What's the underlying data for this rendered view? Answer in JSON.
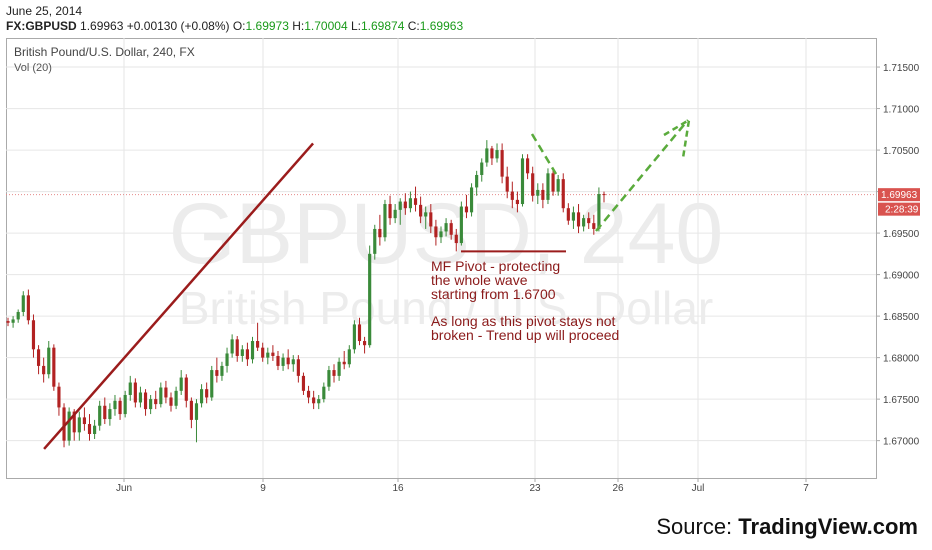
{
  "header": {
    "date": "June 25, 2014",
    "symbol": "FX:GBPUSD",
    "last": "1.69963",
    "change": "+0.00130 (+0.08%)",
    "o_label": "O:",
    "o": "1.69973",
    "h_label": "H:",
    "h": "1.70004",
    "l_label": "L:",
    "l": "1.69874",
    "c_label": "C:",
    "c": "1.69963"
  },
  "chart_title": "British Pound/U.S. Dollar, 240, FX",
  "vol_label": "Vol (20)",
  "watermark": {
    "line1": "GBPUSD, 240",
    "line2": "British Pound / U.S. Dollar"
  },
  "price_tag": "1.69963",
  "time_tag": "2:28:39",
  "annotation": {
    "line1": "MF Pivot - protecting",
    "line2": "the whole wave",
    "line3": "starting from 1.6700",
    "line4": "As long as this pivot stays not",
    "line5": "broken - Trend up will proceed"
  },
  "source": {
    "prefix": "Source: ",
    "brand": "TradingView.com"
  },
  "colors": {
    "up": "#3a8a3a",
    "down": "#b22222",
    "trend": "#9b1c1c",
    "arrow": "#5aab3c",
    "grid": "#e6e6e6"
  },
  "chart_data": {
    "type": "candlestick",
    "title": "British Pound/U.S. Dollar, 240, FX",
    "xticks": [
      "Jun",
      "9",
      "16",
      "23",
      "26",
      "Jul",
      "7"
    ],
    "yticks": [
      "1.71500",
      "1.71000",
      "1.70500",
      "1.70000",
      "1.69500",
      "1.69000",
      "1.68500",
      "1.68000",
      "1.67500",
      "1.67000"
    ],
    "ylim": [
      1.6655,
      1.7185
    ],
    "last_price": 1.69963,
    "candles": [
      [
        1.6844,
        1.6848,
        1.6838,
        1.6842
      ],
      [
        1.6842,
        1.685,
        1.6836,
        1.6846
      ],
      [
        1.6846,
        1.6858,
        1.6842,
        1.6855
      ],
      [
        1.6855,
        1.688,
        1.685,
        1.6875
      ],
      [
        1.6875,
        1.6882,
        1.684,
        1.6845
      ],
      [
        1.6845,
        1.6852,
        1.68,
        1.681
      ],
      [
        1.681,
        1.6815,
        1.678,
        1.679
      ],
      [
        1.679,
        1.68,
        1.677,
        1.678
      ],
      [
        1.678,
        1.682,
        1.6775,
        1.6812
      ],
      [
        1.6812,
        1.6816,
        1.676,
        1.6765
      ],
      [
        1.6765,
        1.677,
        1.673,
        1.674
      ],
      [
        1.674,
        1.6745,
        1.6692,
        1.67
      ],
      [
        1.67,
        1.674,
        1.6694,
        1.6735
      ],
      [
        1.6735,
        1.6738,
        1.67,
        1.671
      ],
      [
        1.671,
        1.6735,
        1.67,
        1.6728
      ],
      [
        1.6728,
        1.674,
        1.6712,
        1.672
      ],
      [
        1.672,
        1.6732,
        1.67,
        1.6708
      ],
      [
        1.6708,
        1.6725,
        1.6702,
        1.6718
      ],
      [
        1.6718,
        1.6748,
        1.6712,
        1.6742
      ],
      [
        1.6742,
        1.6752,
        1.672,
        1.6726
      ],
      [
        1.6726,
        1.6745,
        1.6718,
        1.6738
      ],
      [
        1.6738,
        1.6755,
        1.673,
        1.6748
      ],
      [
        1.6748,
        1.6752,
        1.6725,
        1.6732
      ],
      [
        1.6732,
        1.676,
        1.6728,
        1.6755
      ],
      [
        1.6755,
        1.6778,
        1.6748,
        1.677
      ],
      [
        1.677,
        1.6775,
        1.674,
        1.6746
      ],
      [
        1.6746,
        1.6765,
        1.674,
        1.6758
      ],
      [
        1.6758,
        1.6762,
        1.673,
        1.6738
      ],
      [
        1.6738,
        1.6755,
        1.6732,
        1.675
      ],
      [
        1.675,
        1.676,
        1.6738,
        1.6744
      ],
      [
        1.6744,
        1.677,
        1.674,
        1.6764
      ],
      [
        1.6764,
        1.6772,
        1.6745,
        1.6752
      ],
      [
        1.6752,
        1.6758,
        1.6735,
        1.6742
      ],
      [
        1.6742,
        1.6765,
        1.6738,
        1.676
      ],
      [
        1.676,
        1.6785,
        1.6755,
        1.6776
      ],
      [
        1.6776,
        1.678,
        1.674,
        1.6748
      ],
      [
        1.6748,
        1.6752,
        1.6715,
        1.6725
      ],
      [
        1.6725,
        1.675,
        1.6698,
        1.6745
      ],
      [
        1.6745,
        1.6768,
        1.674,
        1.6762
      ],
      [
        1.6762,
        1.677,
        1.6745,
        1.6752
      ],
      [
        1.6752,
        1.679,
        1.6748,
        1.6785
      ],
      [
        1.6785,
        1.68,
        1.677,
        1.6778
      ],
      [
        1.6778,
        1.6795,
        1.6772,
        1.679
      ],
      [
        1.679,
        1.6812,
        1.6782,
        1.6805
      ],
      [
        1.6805,
        1.6828,
        1.68,
        1.6822
      ],
      [
        1.6822,
        1.6826,
        1.6795,
        1.6802
      ],
      [
        1.6802,
        1.6815,
        1.6795,
        1.681
      ],
      [
        1.681,
        1.6818,
        1.679,
        1.6798
      ],
      [
        1.6798,
        1.6825,
        1.6793,
        1.682
      ],
      [
        1.682,
        1.6842,
        1.6808,
        1.6812
      ],
      [
        1.6812,
        1.6818,
        1.6795,
        1.68
      ],
      [
        1.68,
        1.6812,
        1.6792,
        1.6806
      ],
      [
        1.6806,
        1.6815,
        1.6796,
        1.6802
      ],
      [
        1.6802,
        1.6808,
        1.6785,
        1.679
      ],
      [
        1.679,
        1.6805,
        1.6784,
        1.68
      ],
      [
        1.68,
        1.681,
        1.6786,
        1.6792
      ],
      [
        1.6792,
        1.6803,
        1.6783,
        1.6798
      ],
      [
        1.6798,
        1.6803,
        1.677,
        1.6778
      ],
      [
        1.6778,
        1.6782,
        1.6755,
        1.676
      ],
      [
        1.676,
        1.6766,
        1.6745,
        1.6752
      ],
      [
        1.6752,
        1.676,
        1.6738,
        1.6745
      ],
      [
        1.6745,
        1.6755,
        1.6738,
        1.675
      ],
      [
        1.675,
        1.677,
        1.6746,
        1.6765
      ],
      [
        1.6765,
        1.679,
        1.676,
        1.6785
      ],
      [
        1.6785,
        1.6792,
        1.677,
        1.6778
      ],
      [
        1.6778,
        1.68,
        1.6772,
        1.6795
      ],
      [
        1.6795,
        1.6808,
        1.6786,
        1.6792
      ],
      [
        1.6792,
        1.6815,
        1.6788,
        1.681
      ],
      [
        1.681,
        1.6845,
        1.6805,
        1.684
      ],
      [
        1.684,
        1.6848,
        1.6815,
        1.682
      ],
      [
        1.682,
        1.6825,
        1.6805,
        1.6815
      ],
      [
        1.6815,
        1.6935,
        1.6812,
        1.6925
      ],
      [
        1.6925,
        1.696,
        1.6918,
        1.6955
      ],
      [
        1.6955,
        1.6972,
        1.6935,
        1.6945
      ],
      [
        1.6945,
        1.699,
        1.694,
        1.6985
      ],
      [
        1.6985,
        1.6995,
        1.696,
        1.6968
      ],
      [
        1.6968,
        1.6985,
        1.6962,
        1.6978
      ],
      [
        1.6978,
        1.6992,
        1.696,
        1.6988
      ],
      [
        1.6988,
        1.6998,
        1.6972,
        1.698
      ],
      [
        1.698,
        1.7,
        1.6975,
        1.6992
      ],
      [
        1.6992,
        1.7006,
        1.6976,
        1.6984
      ],
      [
        1.6984,
        1.6994,
        1.6962,
        1.697
      ],
      [
        1.697,
        1.6982,
        1.6955,
        1.6975
      ],
      [
        1.6975,
        1.6985,
        1.695,
        1.6958
      ],
      [
        1.6958,
        1.6966,
        1.6935,
        1.6945
      ],
      [
        1.6945,
        1.6958,
        1.6938,
        1.6952
      ],
      [
        1.6952,
        1.6968,
        1.6946,
        1.6962
      ],
      [
        1.6962,
        1.6966,
        1.6942,
        1.6948
      ],
      [
        1.6948,
        1.6955,
        1.6928,
        1.6938
      ],
      [
        1.6938,
        1.6988,
        1.6935,
        1.6982
      ],
      [
        1.6982,
        1.6996,
        1.6968,
        1.6975
      ],
      [
        1.6975,
        1.701,
        1.697,
        1.7005
      ],
      [
        1.7005,
        1.7025,
        1.6995,
        1.702
      ],
      [
        1.702,
        1.704,
        1.7012,
        1.7035
      ],
      [
        1.7035,
        1.7062,
        1.703,
        1.7052
      ],
      [
        1.7052,
        1.7055,
        1.7032,
        1.704
      ],
      [
        1.704,
        1.7058,
        1.7035,
        1.705
      ],
      [
        1.705,
        1.7058,
        1.701,
        1.7018
      ],
      [
        1.7018,
        1.703,
        1.6992,
        1.7
      ],
      [
        1.7,
        1.7012,
        1.698,
        1.699
      ],
      [
        1.699,
        1.7,
        1.6975,
        1.6985
      ],
      [
        1.6985,
        1.7045,
        1.6982,
        1.704
      ],
      [
        1.704,
        1.7045,
        1.7015,
        1.7022
      ],
      [
        1.7022,
        1.703,
        1.6988,
        1.6995
      ],
      [
        1.6995,
        1.701,
        1.6985,
        1.7002
      ],
      [
        1.7002,
        1.701,
        1.698,
        1.699
      ],
      [
        1.699,
        1.7028,
        1.6985,
        1.7022
      ],
      [
        1.7022,
        1.7026,
        1.6995,
        1.7
      ],
      [
        1.7,
        1.702,
        1.6995,
        1.7015
      ],
      [
        1.7015,
        1.7022,
        1.6975,
        1.698
      ],
      [
        1.698,
        1.6986,
        1.696,
        1.6965
      ],
      [
        1.6965,
        1.6982,
        1.6955,
        1.6975
      ],
      [
        1.6975,
        1.6985,
        1.695,
        1.6958
      ],
      [
        1.6958,
        1.6972,
        1.6952,
        1.6968
      ],
      [
        1.6968,
        1.6975,
        1.6955,
        1.6962
      ],
      [
        1.6962,
        1.6972,
        1.6948,
        1.6955
      ],
      [
        1.6955,
        1.7005,
        1.6952,
        1.6997
      ],
      [
        1.6997,
        1.7,
        1.6987,
        1.6996
      ]
    ],
    "annotations": {
      "trendline": {
        "from": [
          0.06,
          1.669
        ],
        "to": [
          0.5,
          1.7058
        ]
      },
      "pivot_level": 1.6928
    }
  }
}
